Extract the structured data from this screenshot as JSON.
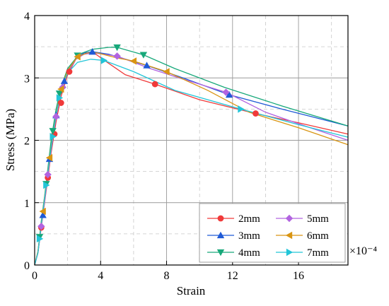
{
  "chart_data": {
    "type": "line",
    "xlabel": "Strain",
    "ylabel": "Stress (MPa)",
    "x_multiplier": "×10⁻⁴",
    "xlim": [
      0,
      19
    ],
    "ylim": [
      0,
      4
    ],
    "xticks": [
      0,
      4,
      8,
      12,
      16
    ],
    "xtick_labels": [
      "0",
      "4",
      "8",
      "12",
      "16"
    ],
    "yticks": [
      0,
      1,
      2,
      3,
      4
    ],
    "ytick_labels": [
      "0",
      "1",
      "2",
      "3",
      "4"
    ],
    "grid": true,
    "legend_position": "bottom-right",
    "series": [
      {
        "name": "2mm",
        "color": "#f03a3a",
        "marker": "circle",
        "points": [
          [
            0,
            0
          ],
          [
            0.2,
            0.2
          ],
          [
            0.4,
            0.6
          ],
          [
            0.6,
            1.0
          ],
          [
            0.8,
            1.4
          ],
          [
            1.0,
            1.8
          ],
          [
            1.3,
            2.3
          ],
          [
            1.6,
            2.7
          ],
          [
            2.0,
            3.05
          ],
          [
            2.5,
            3.3
          ],
          [
            3.0,
            3.4
          ],
          [
            3.6,
            3.4
          ],
          [
            4.4,
            3.25
          ],
          [
            5.5,
            3.05
          ],
          [
            7.3,
            2.9
          ],
          [
            10.0,
            2.65
          ],
          [
            13.4,
            2.43
          ],
          [
            16.0,
            2.28
          ],
          [
            19.0,
            2.1
          ]
        ],
        "markers": [
          [
            0.4,
            0.6
          ],
          [
            0.8,
            1.4
          ],
          [
            1.2,
            2.1
          ],
          [
            1.6,
            2.6
          ],
          [
            2.1,
            3.1
          ],
          [
            7.3,
            2.9
          ],
          [
            13.4,
            2.43
          ]
        ]
      },
      {
        "name": "3mm",
        "color": "#1f5ad6",
        "marker": "triangle-up",
        "points": [
          [
            0,
            0
          ],
          [
            0.2,
            0.2
          ],
          [
            0.4,
            0.65
          ],
          [
            0.6,
            1.05
          ],
          [
            0.8,
            1.5
          ],
          [
            1.0,
            1.9
          ],
          [
            1.3,
            2.4
          ],
          [
            1.6,
            2.8
          ],
          [
            2.0,
            3.1
          ],
          [
            2.5,
            3.32
          ],
          [
            3.0,
            3.4
          ],
          [
            3.5,
            3.42
          ],
          [
            4.5,
            3.38
          ],
          [
            6.8,
            3.2
          ],
          [
            9.0,
            3.0
          ],
          [
            11.8,
            2.73
          ],
          [
            15.0,
            2.5
          ],
          [
            19.0,
            2.23
          ]
        ],
        "markers": [
          [
            0.5,
            0.8
          ],
          [
            0.9,
            1.7
          ],
          [
            1.3,
            2.4
          ],
          [
            1.8,
            2.95
          ],
          [
            3.5,
            3.42
          ],
          [
            6.8,
            3.2
          ],
          [
            11.8,
            2.73
          ]
        ]
      },
      {
        "name": "4mm",
        "color": "#17a87a",
        "marker": "triangle-down",
        "points": [
          [
            0,
            0
          ],
          [
            0.2,
            0.22
          ],
          [
            0.4,
            0.7
          ],
          [
            0.6,
            1.1
          ],
          [
            0.8,
            1.55
          ],
          [
            1.0,
            2.0
          ],
          [
            1.3,
            2.5
          ],
          [
            1.6,
            2.85
          ],
          [
            2.0,
            3.15
          ],
          [
            2.7,
            3.38
          ],
          [
            3.5,
            3.46
          ],
          [
            4.5,
            3.49
          ],
          [
            5.0,
            3.49
          ],
          [
            6.6,
            3.37
          ],
          [
            8.5,
            3.15
          ],
          [
            11.5,
            2.85
          ],
          [
            15.0,
            2.55
          ],
          [
            19.0,
            2.23
          ]
        ],
        "markers": [
          [
            0.3,
            0.45
          ],
          [
            0.7,
            1.3
          ],
          [
            1.1,
            2.15
          ],
          [
            1.5,
            2.75
          ],
          [
            2.6,
            3.36
          ],
          [
            5.0,
            3.49
          ],
          [
            6.6,
            3.37
          ]
        ]
      },
      {
        "name": "5mm",
        "color": "#b264e0",
        "marker": "diamond",
        "points": [
          [
            0,
            0
          ],
          [
            0.2,
            0.2
          ],
          [
            0.4,
            0.62
          ],
          [
            0.6,
            1.02
          ],
          [
            0.8,
            1.45
          ],
          [
            1.0,
            1.85
          ],
          [
            1.3,
            2.38
          ],
          [
            1.6,
            2.78
          ],
          [
            2.0,
            3.08
          ],
          [
            2.5,
            3.3
          ],
          [
            3.0,
            3.38
          ],
          [
            3.6,
            3.4
          ],
          [
            5.0,
            3.35
          ],
          [
            7.0,
            3.15
          ],
          [
            9.0,
            2.98
          ],
          [
            11.6,
            2.77
          ],
          [
            14.0,
            2.45
          ],
          [
            16.5,
            2.22
          ],
          [
            19.0,
            2.0
          ]
        ],
        "markers": [
          [
            0.4,
            0.62
          ],
          [
            0.8,
            1.45
          ],
          [
            1.3,
            2.38
          ],
          [
            1.7,
            2.85
          ],
          [
            5.0,
            3.35
          ],
          [
            11.6,
            2.77
          ]
        ]
      },
      {
        "name": "6mm",
        "color": "#d99513",
        "marker": "triangle-left",
        "points": [
          [
            0,
            0
          ],
          [
            0.2,
            0.22
          ],
          [
            0.4,
            0.66
          ],
          [
            0.6,
            1.08
          ],
          [
            0.8,
            1.5
          ],
          [
            1.0,
            1.9
          ],
          [
            1.3,
            2.42
          ],
          [
            1.6,
            2.82
          ],
          [
            2.0,
            3.12
          ],
          [
            2.6,
            3.34
          ],
          [
            3.2,
            3.4
          ],
          [
            3.8,
            3.4
          ],
          [
            5.0,
            3.32
          ],
          [
            6.0,
            3.27
          ],
          [
            8.0,
            3.1
          ],
          [
            10.5,
            2.8
          ],
          [
            13.0,
            2.45
          ],
          [
            16.0,
            2.2
          ],
          [
            19.0,
            1.93
          ]
        ],
        "markers": [
          [
            0.5,
            0.86
          ],
          [
            0.9,
            1.72
          ],
          [
            1.6,
            2.82
          ],
          [
            2.6,
            3.34
          ],
          [
            6.0,
            3.27
          ],
          [
            8.0,
            3.1
          ]
        ]
      },
      {
        "name": "7mm",
        "color": "#22c5d8",
        "marker": "triangle-right",
        "points": [
          [
            0,
            0
          ],
          [
            0.2,
            0.2
          ],
          [
            0.4,
            0.64
          ],
          [
            0.6,
            1.06
          ],
          [
            0.8,
            1.48
          ],
          [
            1.0,
            1.88
          ],
          [
            1.3,
            2.4
          ],
          [
            1.6,
            2.8
          ],
          [
            2.0,
            3.08
          ],
          [
            2.6,
            3.25
          ],
          [
            3.4,
            3.3
          ],
          [
            4.2,
            3.28
          ],
          [
            6.0,
            3.1
          ],
          [
            8.5,
            2.8
          ],
          [
            12.5,
            2.5
          ],
          [
            16.0,
            2.25
          ],
          [
            19.0,
            2.05
          ]
        ],
        "markers": [
          [
            0.3,
            0.42
          ],
          [
            0.7,
            1.28
          ],
          [
            1.1,
            2.06
          ],
          [
            1.5,
            2.68
          ],
          [
            4.2,
            3.28
          ],
          [
            12.5,
            2.5
          ]
        ]
      }
    ]
  }
}
